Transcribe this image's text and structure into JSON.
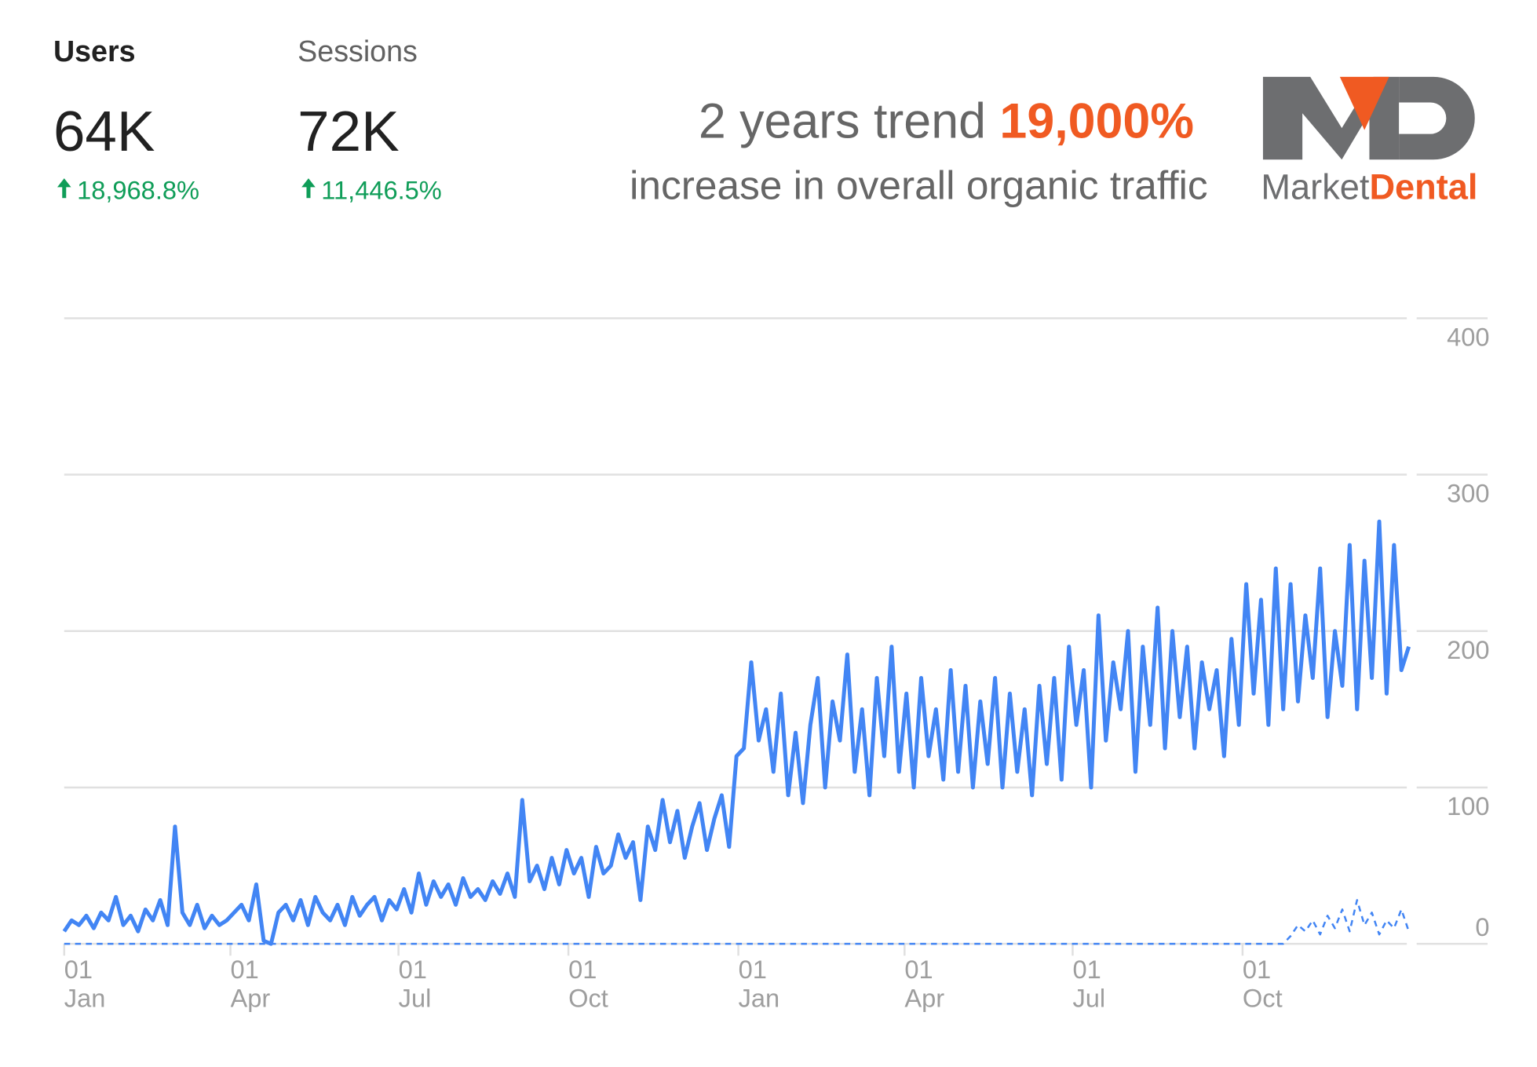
{
  "header": {
    "metrics": [
      {
        "label": "Users",
        "value": "64K",
        "change": "18,968.8%"
      },
      {
        "label": "Sessions",
        "value": "72K",
        "change": "11,446.5%"
      }
    ],
    "headline": {
      "lead": "2 years trend",
      "highlight": "19,000%",
      "sub": "increase in overall organic traffic"
    },
    "logo": {
      "left": "Market",
      "right": "Dental"
    }
  },
  "chart_data": {
    "type": "line",
    "xlim": [
      0,
      182
    ],
    "xticks": [
      {
        "value": 0,
        "label": "01\nJan"
      },
      {
        "value": 22.5,
        "label": "01\nApr"
      },
      {
        "value": 45.25,
        "label": "01\nJul"
      },
      {
        "value": 68.25,
        "label": "01\nOct"
      },
      {
        "value": 91.25,
        "label": "01\nJan"
      },
      {
        "value": 113.75,
        "label": "01\nApr"
      },
      {
        "value": 136.5,
        "label": "01\nJul"
      },
      {
        "value": 159.5,
        "label": "01\nOct"
      }
    ],
    "ylim": [
      0,
      400
    ],
    "yticks": [
      0,
      100,
      200,
      300,
      400
    ],
    "grid": true,
    "series": [
      {
        "color": "#4285f4",
        "dashed": false,
        "values": [
          8,
          15,
          12,
          18,
          10,
          20,
          15,
          30,
          12,
          18,
          8,
          22,
          15,
          28,
          12,
          75,
          20,
          12,
          25,
          10,
          18,
          12,
          15,
          20,
          25,
          15,
          38,
          2,
          0,
          20,
          25,
          15,
          28,
          12,
          30,
          20,
          15,
          25,
          12,
          30,
          18,
          25,
          30,
          15,
          28,
          22,
          35,
          20,
          45,
          25,
          40,
          30,
          38,
          25,
          42,
          30,
          35,
          28,
          40,
          32,
          45,
          30,
          92,
          40,
          50,
          35,
          55,
          38,
          60,
          45,
          55,
          30,
          62,
          45,
          50,
          70,
          55,
          65,
          28,
          75,
          60,
          92,
          65,
          85,
          55,
          75,
          90,
          60,
          80,
          95,
          62,
          120,
          125,
          180,
          130,
          150,
          110,
          160,
          95,
          135,
          90,
          140,
          170,
          100,
          155,
          130,
          185,
          110,
          150,
          95,
          170,
          120,
          190,
          110,
          160,
          100,
          170,
          120,
          150,
          105,
          175,
          110,
          165,
          100,
          155,
          115,
          170,
          100,
          160,
          110,
          150,
          95,
          165,
          115,
          170,
          105,
          190,
          140,
          175,
          100,
          210,
          130,
          180,
          150,
          200,
          110,
          190,
          140,
          215,
          125,
          200,
          145,
          190,
          125,
          180,
          150,
          175,
          120,
          195,
          140,
          230,
          160,
          220,
          140,
          240,
          150,
          230,
          155,
          210,
          170,
          240,
          145,
          200,
          165,
          255,
          150,
          245,
          170,
          270,
          160,
          255,
          175,
          190
        ]
      },
      {
        "color": "#4285f4",
        "dashed": true,
        "values": [
          0,
          0,
          0,
          0,
          0,
          0,
          0,
          0,
          0,
          0,
          0,
          0,
          0,
          0,
          0,
          0,
          0,
          0,
          0,
          0,
          0,
          0,
          0,
          0,
          0,
          0,
          0,
          0,
          0,
          0,
          0,
          0,
          0,
          0,
          0,
          0,
          0,
          0,
          0,
          0,
          0,
          0,
          0,
          0,
          0,
          0,
          0,
          0,
          0,
          0,
          0,
          0,
          0,
          0,
          0,
          0,
          0,
          0,
          0,
          0,
          0,
          0,
          0,
          0,
          0,
          0,
          0,
          0,
          0,
          0,
          0,
          0,
          0,
          0,
          0,
          0,
          0,
          0,
          0,
          0,
          0,
          0,
          0,
          0,
          0,
          0,
          0,
          0,
          0,
          0,
          0,
          0,
          0,
          0,
          0,
          0,
          0,
          0,
          0,
          0,
          0,
          0,
          0,
          0,
          0,
          0,
          0,
          0,
          0,
          0,
          0,
          0,
          0,
          0,
          0,
          0,
          0,
          0,
          0,
          0,
          0,
          0,
          0,
          0,
          0,
          0,
          0,
          0,
          0,
          0,
          0,
          0,
          0,
          0,
          0,
          0,
          0,
          0,
          0,
          0,
          0,
          0,
          0,
          0,
          0,
          0,
          0,
          0,
          0,
          0,
          0,
          0,
          0,
          0,
          0,
          0,
          0,
          0,
          0,
          0,
          0,
          0,
          0,
          0,
          0,
          0,
          5,
          12,
          8,
          15,
          6,
          18,
          10,
          22,
          8,
          28,
          12,
          20,
          6,
          15,
          10,
          22,
          8
        ]
      }
    ]
  }
}
